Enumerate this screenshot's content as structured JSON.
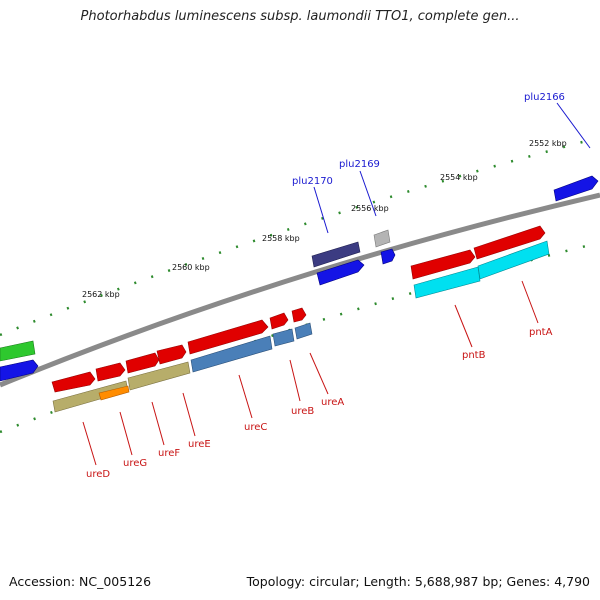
{
  "title": "Photorhabdus luminescens subsp. laumondii TTO1, complete gen...",
  "footer": {
    "accession": "Accession: NC_005126",
    "topology": "Topology: circular; Length: 5,688,987 bp; Genes: 4,790"
  },
  "ticks": [
    "2552 kbp",
    "2554 kbp",
    "2556 kbp",
    "2558 kbp",
    "2560 kbp",
    "2562 kbp"
  ],
  "gene_labels": {
    "top": [
      "plu2166",
      "plu2169",
      "plu2170"
    ],
    "bottom": [
      "ureD",
      "ureG",
      "ureF",
      "ureE",
      "ureC",
      "ureB",
      "ureA",
      "pntB",
      "pntA"
    ]
  },
  "colors": {
    "top_label": "#1a1ad0",
    "bottom_label": "#c81414",
    "backbone": "#888888",
    "tick": "#2e8b2e",
    "forward_gene": "#e00000",
    "cog_cyan": "#00e0f0",
    "cog_steel": "#4a7fb8",
    "cog_khaki": "#b7ad6a",
    "cog_orange": "#ff8c00",
    "cog_navy": "#3c3c82",
    "cog_blue": "#1414e6",
    "cog_green": "#2ec82e",
    "cog_grey": "#b4b4b4"
  }
}
